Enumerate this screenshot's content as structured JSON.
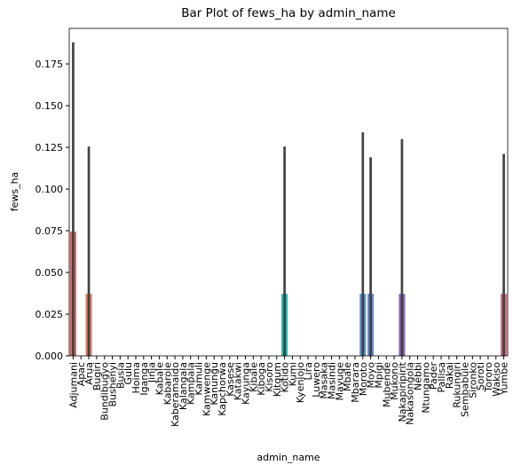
{
  "chart_data": {
    "type": "bar",
    "title": "Bar Plot of fews_ha by admin_name",
    "x_label": "admin_name",
    "y_label": "fews_ha",
    "categories": [
      "Adjumani",
      "Apac",
      "Arua",
      "Bugiri",
      "Bundibugyo",
      "Bushenyi",
      "Busia",
      "Gulu",
      "Hoima",
      "Iganga",
      "Jinja",
      "Kabale",
      "Kabarole",
      "Kaberamaido",
      "Kalangala",
      "Kampala",
      "Kamuli",
      "Kamwenge",
      "Kanungu",
      "Kapchorwa",
      "Kasese",
      "Katakwi",
      "Kayunga",
      "Kibale",
      "Kiboga",
      "Kisoro",
      "Kitgum",
      "Kotido",
      "Kumi",
      "Kyenjojo",
      "Lira",
      "Luwero",
      "Masaka",
      "Masindi",
      "Mayuge",
      "Mbale",
      "Mbarara",
      "Moroto",
      "Moyo",
      "Mpigi",
      "Mubende",
      "Mukono",
      "Nakapiripirit",
      "Nakasongola",
      "Nebbi",
      "Ntungamo",
      "Pader",
      "Pallisa",
      "Rakai",
      "Rukungiri",
      "Sembabule",
      "Sironko",
      "Soroti",
      "Tororo",
      "Wakiso",
      "Yumbe"
    ],
    "values": [
      0.0745,
      0,
      0.0372,
      0,
      0,
      0,
      0,
      0,
      0,
      0,
      0,
      0,
      0,
      0,
      0,
      0,
      0,
      0,
      0,
      0,
      0,
      0,
      0,
      0,
      0,
      0,
      0,
      0.0372,
      0,
      0,
      0,
      0,
      0,
      0,
      0,
      0,
      0,
      0.0372,
      0.0372,
      0,
      0,
      0,
      0.0372,
      0,
      0,
      0,
      0,
      0,
      0,
      0,
      0,
      0,
      0,
      0,
      0,
      0.0372
    ],
    "ci_low": [
      0,
      0,
      0,
      0,
      0,
      0,
      0,
      0,
      0,
      0,
      0,
      0,
      0,
      0,
      0,
      0,
      0,
      0,
      0,
      0,
      0,
      0,
      0,
      0,
      0,
      0,
      0,
      0,
      0,
      0,
      0,
      0,
      0,
      0,
      0,
      0,
      0,
      0,
      0,
      0,
      0,
      0,
      0,
      0,
      0,
      0,
      0,
      0,
      0,
      0,
      0,
      0,
      0,
      0,
      0,
      0
    ],
    "ci_high": [
      0.188,
      0,
      0.1255,
      0,
      0,
      0,
      0,
      0,
      0,
      0,
      0,
      0,
      0,
      0,
      0,
      0,
      0,
      0,
      0,
      0,
      0,
      0,
      0,
      0,
      0,
      0,
      0,
      0.1255,
      0,
      0,
      0,
      0,
      0,
      0,
      0,
      0,
      0,
      0.134,
      0.119,
      0,
      0,
      0,
      0.13,
      0,
      0,
      0,
      0,
      0,
      0,
      0,
      0,
      0,
      0,
      0,
      0,
      0.121
    ],
    "colors": [
      "hsl(0,60%,62%)",
      "hsl(6,60%,62%)",
      "hsl(13,60%,62%)",
      "hsl(19,60%,62%)",
      "hsl(26,60%,62%)",
      "hsl(32,60%,62%)",
      "hsl(39,60%,62%)",
      "hsl(45,60%,62%)",
      "hsl(51,60%,62%)",
      "hsl(58,60%,62%)",
      "hsl(64,60%,62%)",
      "hsl(71,60%,62%)",
      "hsl(77,60%,62%)",
      "hsl(84,60%,62%)",
      "hsl(90,60%,62%)",
      "hsl(96,60%,62%)",
      "hsl(103,60%,62%)",
      "hsl(109,60%,62%)",
      "hsl(116,60%,62%)",
      "hsl(122,60%,62%)",
      "hsl(129,60%,62%)",
      "hsl(135,60%,62%)",
      "hsl(141,60%,62%)",
      "hsl(148,60%,62%)",
      "hsl(154,60%,62%)",
      "hsl(161,60%,55%)",
      "hsl(167,60%,50%)",
      "hsl(174,60%,45%)",
      "hsl(180,60%,45%)",
      "hsl(186,60%,48%)",
      "hsl(193,60%,52%)",
      "hsl(199,60%,55%)",
      "hsl(206,60%,58%)",
      "hsl(212,60%,60%)",
      "hsl(219,60%,62%)",
      "hsl(225,60%,62%)",
      "hsl(231,60%,62%)",
      "hsl(212,55%,58%)",
      "hsl(220,50%,60%)",
      "hsl(251,60%,65%)",
      "hsl(257,60%,65%)",
      "hsl(264,60%,65%)",
      "hsl(262,40%,58%)",
      "hsl(276,60%,65%)",
      "hsl(283,60%,65%)",
      "hsl(289,60%,65%)",
      "hsl(296,60%,65%)",
      "hsl(302,60%,65%)",
      "hsl(309,60%,65%)",
      "hsl(315,60%,65%)",
      "hsl(321,60%,65%)",
      "hsl(328,60%,65%)",
      "hsl(334,60%,65%)",
      "hsl(341,60%,65%)",
      "hsl(347,60%,65%)",
      "hsl(350,55%,62%)"
    ],
    "errorbar_color": "#424242",
    "ylim": [
      0,
      0.1963
    ],
    "yticks": [
      {
        "value": 0,
        "label": "0.000"
      },
      {
        "value": 0.025,
        "label": "0.025"
      },
      {
        "value": 0.05,
        "label": "0.050"
      },
      {
        "value": 0.075,
        "label": "0.075"
      },
      {
        "value": 0.1,
        "label": "0.100"
      },
      {
        "value": 0.125,
        "label": "0.125"
      },
      {
        "value": 0.15,
        "label": "0.150"
      },
      {
        "value": 0.175,
        "label": "0.175"
      }
    ]
  }
}
